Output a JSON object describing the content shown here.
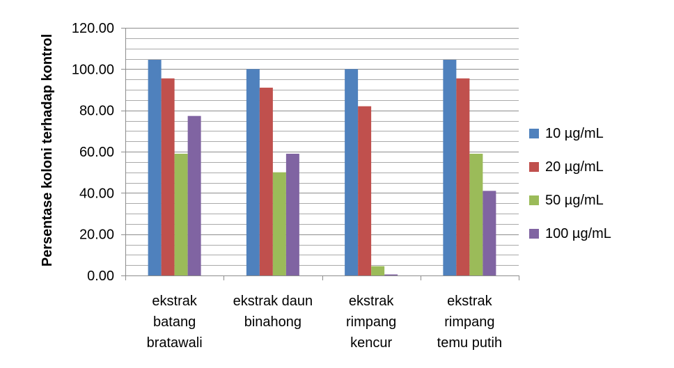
{
  "chart_data": {
    "type": "bar",
    "title": "",
    "xlabel": "",
    "ylabel": "Persentase koloni terhadap kontrol",
    "ylim": [
      0,
      120
    ],
    "y_major_step": 20,
    "y_minor_step": 5,
    "y_tick_labels": [
      "0.00",
      "20.00",
      "40.00",
      "60.00",
      "80.00",
      "100.00",
      "120.00"
    ],
    "grid": true,
    "legend_position": "right",
    "categories": [
      [
        "ekstrak",
        "batang",
        "bratawali"
      ],
      [
        "ekstrak daun",
        "binahong"
      ],
      [
        "ekstrak",
        "rimpang",
        "kencur"
      ],
      [
        "ekstrak",
        "rimpang",
        "temu putih"
      ]
    ],
    "series": [
      {
        "name": "10 µg/mL",
        "color": "#4F81BD",
        "values": [
          104.5,
          100.0,
          100.0,
          104.5
        ]
      },
      {
        "name": "20 µg/mL",
        "color": "#C0504D",
        "values": [
          95.5,
          91.0,
          82.0,
          95.5
        ]
      },
      {
        "name": "50 µg/mL",
        "color": "#9BBB59",
        "values": [
          59.0,
          50.0,
          4.5,
          59.0
        ]
      },
      {
        "name": "100 µg/mL",
        "color": "#8064A2",
        "values": [
          77.3,
          59.0,
          0.5,
          41.0
        ]
      }
    ]
  }
}
